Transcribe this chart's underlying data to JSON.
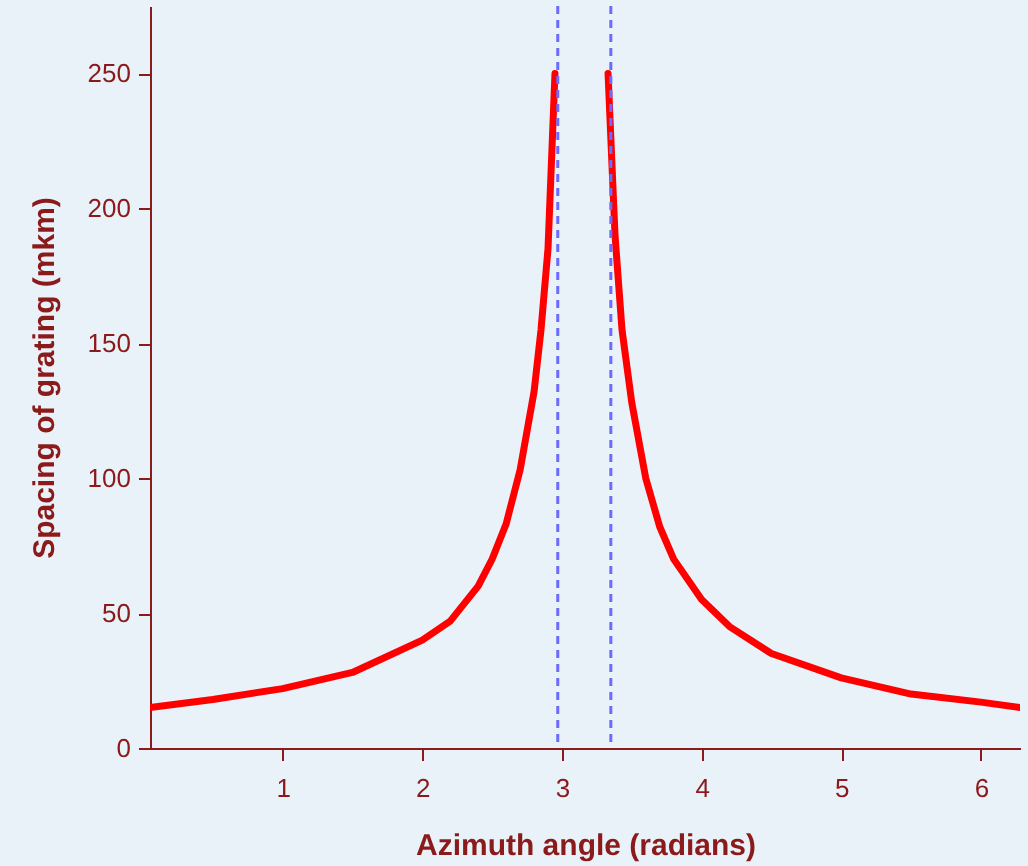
{
  "chart_data": {
    "type": "line",
    "xlabel": "Azimuth angle (radians)",
    "ylabel": "Spacing of grating (mkm)",
    "xlim": [
      0.05,
      6.28
    ],
    "ylim": [
      0,
      275
    ],
    "xticks": [
      1,
      2,
      3,
      4,
      5,
      6
    ],
    "yticks": [
      0,
      50,
      100,
      150,
      200,
      250
    ],
    "grid": false,
    "marker": "none",
    "line_style": "solid",
    "series": [
      {
        "color": "#ff0000",
        "x": [
          0.05,
          0.5,
          1,
          1.5,
          2,
          2.2,
          2.4,
          2.5,
          2.6,
          2.7,
          2.8,
          2.85,
          2.9,
          2.95
        ],
        "values": [
          15,
          18,
          22,
          28,
          40,
          47,
          60,
          70,
          83,
          103,
          132,
          155,
          185,
          250
        ]
      },
      {
        "color": "#ff0000",
        "x": [
          3.33,
          3.38,
          3.43,
          3.5,
          3.6,
          3.7,
          3.8,
          4,
          4.2,
          4.5,
          5,
          5.5,
          6,
          6.28
        ],
        "values": [
          250,
          190,
          155,
          128,
          100,
          82,
          70,
          55,
          45,
          35,
          26,
          20,
          17,
          15
        ]
      }
    ],
    "ref_lines": [
      {
        "axis": "x",
        "value": 2.97,
        "color": "#6b6bff",
        "line_style": "dashed"
      },
      {
        "axis": "x",
        "value": 3.35,
        "color": "#6b6bff",
        "line_style": "dashed"
      }
    ]
  }
}
